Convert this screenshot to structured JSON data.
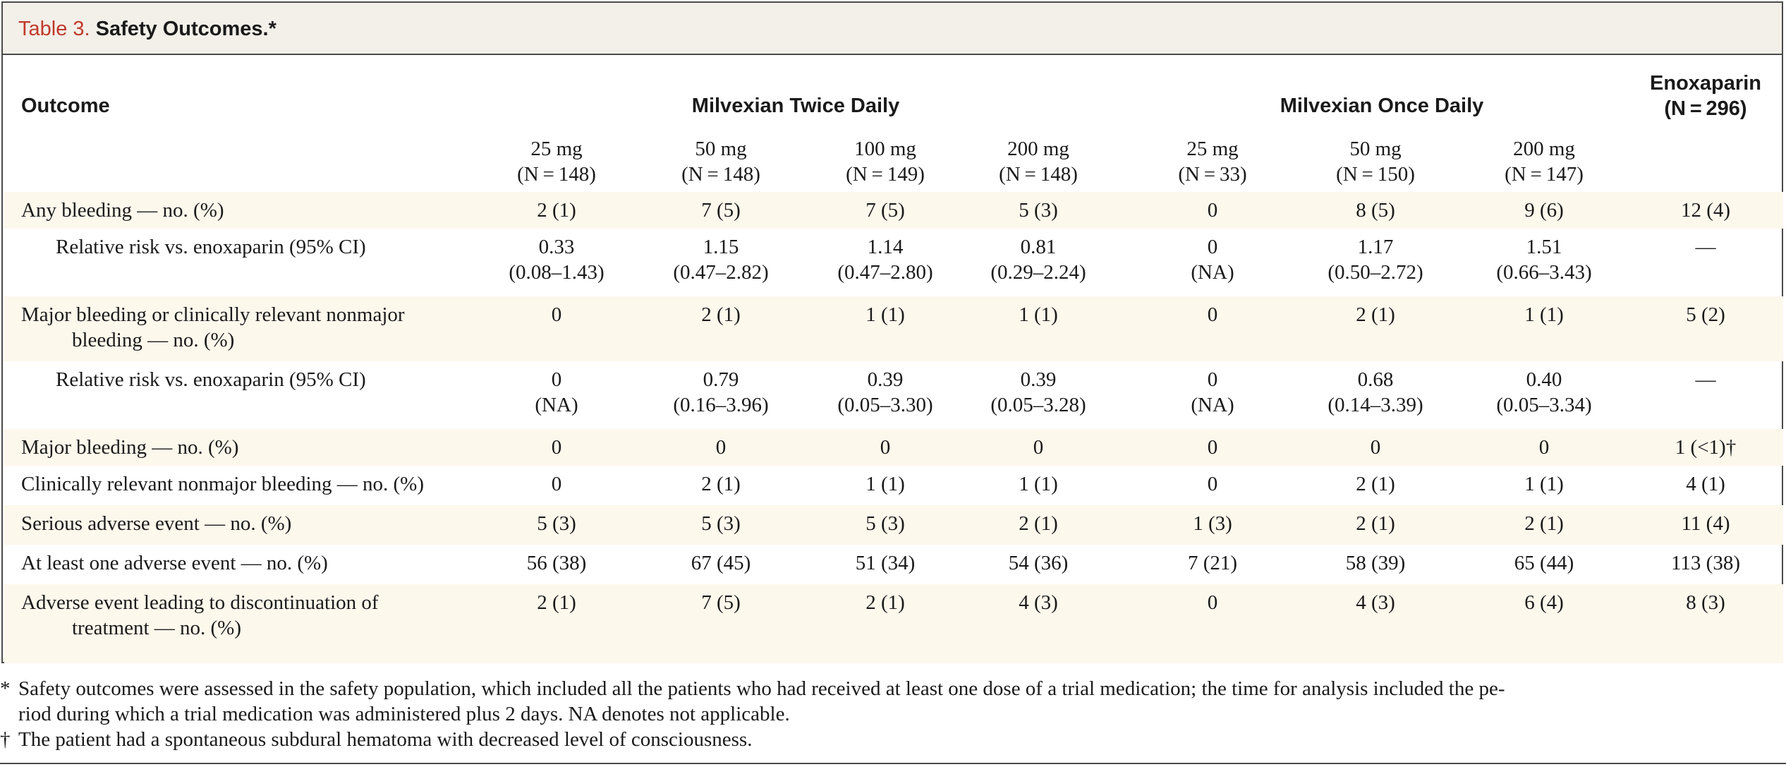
{
  "table": {
    "label": "Table 3.",
    "title": "Safety Outcomes.*",
    "outcome_header": "Outcome",
    "group_twice": "Milvexian Twice Daily",
    "group_once": "Milvexian Once Daily",
    "enox_header": [
      "Enoxaparin",
      "(N = 296)"
    ],
    "dose_columns": [
      [
        "25 mg",
        "(N = 148)"
      ],
      [
        "50 mg",
        "(N = 148)"
      ],
      [
        "100 mg",
        "(N = 149)"
      ],
      [
        "200 mg",
        "(N = 148)"
      ],
      [
        "25 mg",
        "(N = 33)"
      ],
      [
        "50 mg",
        "(N = 150)"
      ],
      [
        "200 mg",
        "(N = 147)"
      ]
    ],
    "rows": [
      {
        "label": [
          "Any bleeding — no. (%)"
        ],
        "values": [
          [
            "2 (1)"
          ],
          [
            "7 (5)"
          ],
          [
            "7 (5)"
          ],
          [
            "5 (3)"
          ],
          [
            "0"
          ],
          [
            "8 (5)"
          ],
          [
            "9 (6)"
          ],
          [
            "12 (4)"
          ]
        ]
      },
      {
        "label": [
          "Relative risk vs. enoxaparin (95% CI)"
        ],
        "values": [
          [
            "0.33",
            "(0.08–1.43)"
          ],
          [
            "1.15",
            "(0.47–2.82)"
          ],
          [
            "1.14",
            "(0.47–2.80)"
          ],
          [
            "0.81",
            "(0.29–2.24)"
          ],
          [
            "0",
            "(NA)"
          ],
          [
            "1.17",
            "(0.50–2.72)"
          ],
          [
            "1.51",
            "(0.66–3.43)"
          ],
          [
            "—"
          ]
        ]
      },
      {
        "label": [
          "Major bleeding or clinically relevant nonmajor",
          "bleeding — no. (%)"
        ],
        "values": [
          [
            "0"
          ],
          [
            "2 (1)"
          ],
          [
            "1 (1)"
          ],
          [
            "1 (1)"
          ],
          [
            "0"
          ],
          [
            "2 (1)"
          ],
          [
            "1 (1)"
          ],
          [
            "5 (2)"
          ]
        ]
      },
      {
        "label": [
          "Relative risk vs. enoxaparin (95% CI)"
        ],
        "values": [
          [
            "0",
            "(NA)"
          ],
          [
            "0.79",
            "(0.16–3.96)"
          ],
          [
            "0.39",
            "(0.05–3.30)"
          ],
          [
            "0.39",
            "(0.05–3.28)"
          ],
          [
            "0",
            "(NA)"
          ],
          [
            "0.68",
            "(0.14–3.39)"
          ],
          [
            "0.40",
            "(0.05–3.34)"
          ],
          [
            "—"
          ]
        ]
      },
      {
        "label": [
          "Major bleeding — no. (%)"
        ],
        "values": [
          [
            "0"
          ],
          [
            "0"
          ],
          [
            "0"
          ],
          [
            "0"
          ],
          [
            "0"
          ],
          [
            "0"
          ],
          [
            "0"
          ],
          [
            "1 (<1)†"
          ]
        ]
      },
      {
        "label": [
          "Clinically relevant nonmajor bleeding — no. (%)"
        ],
        "values": [
          [
            "0"
          ],
          [
            "2 (1)"
          ],
          [
            "1 (1)"
          ],
          [
            "1 (1)"
          ],
          [
            "0"
          ],
          [
            "2 (1)"
          ],
          [
            "1 (1)"
          ],
          [
            "4 (1)"
          ]
        ]
      },
      {
        "label": [
          "Serious adverse event — no. (%)"
        ],
        "values": [
          [
            "5 (3)"
          ],
          [
            "5 (3)"
          ],
          [
            "5 (3)"
          ],
          [
            "2 (1)"
          ],
          [
            "1 (3)"
          ],
          [
            "2 (1)"
          ],
          [
            "2 (1)"
          ],
          [
            "11 (4)"
          ]
        ]
      },
      {
        "label": [
          "At least one adverse event — no. (%)"
        ],
        "values": [
          [
            "56 (38)"
          ],
          [
            "67 (45)"
          ],
          [
            "51 (34)"
          ],
          [
            "54 (36)"
          ],
          [
            "7 (21)"
          ],
          [
            "58 (39)"
          ],
          [
            "65 (44)"
          ],
          [
            "113 (38)"
          ]
        ]
      },
      {
        "label": [
          "Adverse event leading to discontinuation of",
          "treatment — no. (%)"
        ],
        "values": [
          [
            "2 (1)"
          ],
          [
            "7 (5)"
          ],
          [
            "2 (1)"
          ],
          [
            "4 (3)"
          ],
          [
            "0"
          ],
          [
            "4 (3)"
          ],
          [
            "6 (4)"
          ],
          [
            "8 (3)"
          ]
        ]
      }
    ]
  },
  "footnotes": [
    {
      "mark": "*",
      "lines": [
        "Safety outcomes were assessed in the safety population, which included all the patients who had received at least one dose of a trial medication; the time for analysis included the pe-",
        "riod during which a trial medication was administered plus 2 days. NA denotes not applicable."
      ]
    },
    {
      "mark": "†",
      "lines": [
        "The patient had a spontaneous subdural hematoma with decreased level of consciousness."
      ]
    }
  ]
}
